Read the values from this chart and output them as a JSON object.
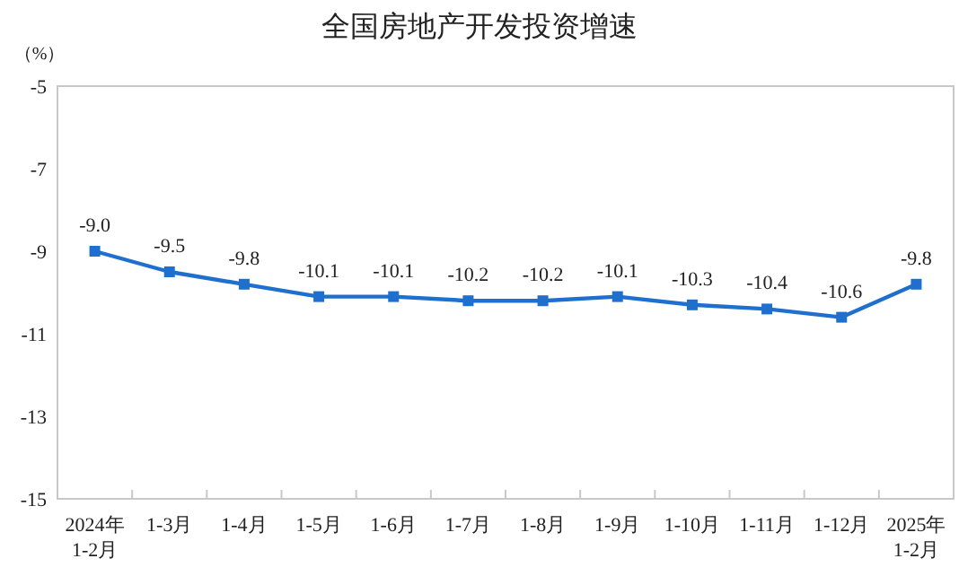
{
  "chart_data": {
    "type": "line",
    "title": "全国房地产开发投资增速",
    "ylabel": "（%）",
    "categories": [
      "2024年\n1-2月",
      "1-3月",
      "1-4月",
      "1-5月",
      "1-6月",
      "1-7月",
      "1-8月",
      "1-9月",
      "1-10月",
      "1-11月",
      "1-12月",
      "2025年\n1-2月"
    ],
    "series": [
      {
        "color": "#1f6fcf",
        "values": [
          -9.0,
          -9.5,
          -9.8,
          -10.1,
          -10.1,
          -10.2,
          -10.2,
          -10.1,
          -10.3,
          -10.4,
          -10.6,
          -9.8
        ],
        "value_labels": [
          "-9.0",
          "-9.5",
          "-9.8",
          "-10.1",
          "-10.1",
          "-10.2",
          "-10.2",
          "-10.1",
          "-10.3",
          "-10.4",
          "-10.6",
          "-9.8"
        ]
      }
    ],
    "ylim": [
      -15,
      -5
    ],
    "yticks": [
      -5,
      -7,
      -9,
      -11,
      -13,
      -15
    ],
    "marker": "square",
    "line_style": "solid"
  }
}
